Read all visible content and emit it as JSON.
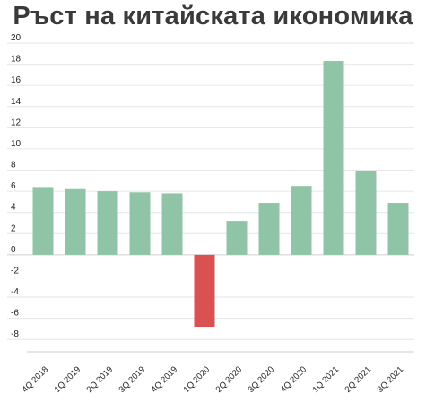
{
  "chart_data": {
    "type": "bar",
    "title": "Ръст на китайската икономика",
    "categories": [
      "4Q 2018",
      "1Q 2019",
      "2Q 2019",
      "3Q 2019",
      "4Q 2019",
      "1Q 2020",
      "2Q 2020",
      "3Q 2020",
      "4Q 2020",
      "1Q 2021",
      "2Q 2021",
      "3Q 2021"
    ],
    "values": [
      6.4,
      6.2,
      6.0,
      5.9,
      5.8,
      -6.8,
      3.2,
      4.9,
      6.5,
      18.3,
      7.9,
      4.9
    ],
    "yticks": [
      "20",
      "18",
      "16",
      "14",
      "12",
      "10",
      "8",
      "6",
      "4",
      "2",
      "0",
      "-2",
      "-4",
      "-6",
      "-8"
    ],
    "ylim": [
      -9,
      20
    ],
    "grid": true,
    "colors": {
      "positive": "#8fc4a6",
      "negative": "#d95151"
    }
  }
}
